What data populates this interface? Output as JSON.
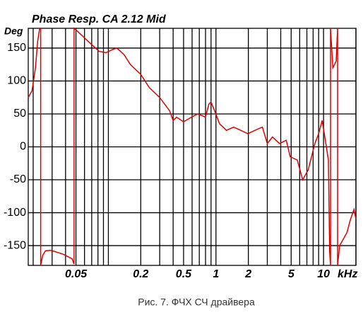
{
  "chart_data": {
    "type": "line",
    "title": "Phase  Resp.  CA  2.12 Mid",
    "y_label": "Deg",
    "x_label": "kHz",
    "caption": "Рис. 7. ФЧХ СЧ драйвера",
    "log_x": true,
    "grid": true,
    "xlim": [
      0.018,
      20
    ],
    "ylim": [
      -180,
      180
    ],
    "xticks": [
      0.05,
      0.2,
      0.5,
      1,
      2,
      5,
      10
    ],
    "xgrid": [
      0.02,
      0.03,
      0.04,
      0.05,
      0.06,
      0.07,
      0.08,
      0.09,
      0.1,
      0.2,
      0.3,
      0.4,
      0.5,
      0.6,
      0.7,
      0.8,
      0.9,
      1,
      2,
      3,
      4,
      5,
      6,
      7,
      8,
      9,
      10,
      20
    ],
    "yticks": [
      150,
      100,
      50,
      0,
      -50,
      -100,
      -150
    ],
    "x": [
      0.018,
      0.0195,
      0.021,
      0.022,
      0.023,
      0.0235,
      0.0235,
      0.0245,
      0.026,
      0.029,
      0.038,
      0.046,
      0.048,
      0.048,
      0.052,
      0.065,
      0.082,
      0.095,
      0.11,
      0.12,
      0.14,
      0.16,
      0.2,
      0.24,
      0.3,
      0.37,
      0.4,
      0.43,
      0.5,
      0.59,
      0.68,
      0.8,
      0.86,
      0.9,
      0.97,
      1.08,
      1.25,
      1.46,
      1.7,
      1.98,
      2.3,
      2.7,
      3.0,
      3.35,
      3.9,
      4.5,
      4.9,
      5.7,
      6.4,
      7.2,
      8.3,
      9.0,
      9.7,
      10.4,
      11.1,
      11.4,
      11.6,
      11.6,
      12.2,
      13.1,
      13.5,
      13.5,
      14.1,
      16.5,
      17.8,
      19.2,
      20
    ],
    "series": [
      {
        "name": "Phase",
        "color": "#e00000",
        "values": [
          75,
          85,
          120,
          160,
          180,
          180,
          -180,
          -165,
          -158,
          -157,
          -163,
          -170,
          -178,
          180,
          175,
          160,
          145,
          143,
          148,
          150,
          140,
          125,
          110,
          90,
          75,
          55,
          40,
          45,
          38,
          45,
          50,
          45,
          65,
          68,
          55,
          35,
          25,
          30,
          25,
          20,
          25,
          30,
          5,
          15,
          5,
          10,
          -15,
          -20,
          -50,
          -35,
          5,
          20,
          40,
          10,
          -20,
          -160,
          -180,
          180,
          120,
          130,
          180,
          -180,
          -150,
          -130,
          -110,
          -95,
          -110
        ]
      }
    ]
  }
}
